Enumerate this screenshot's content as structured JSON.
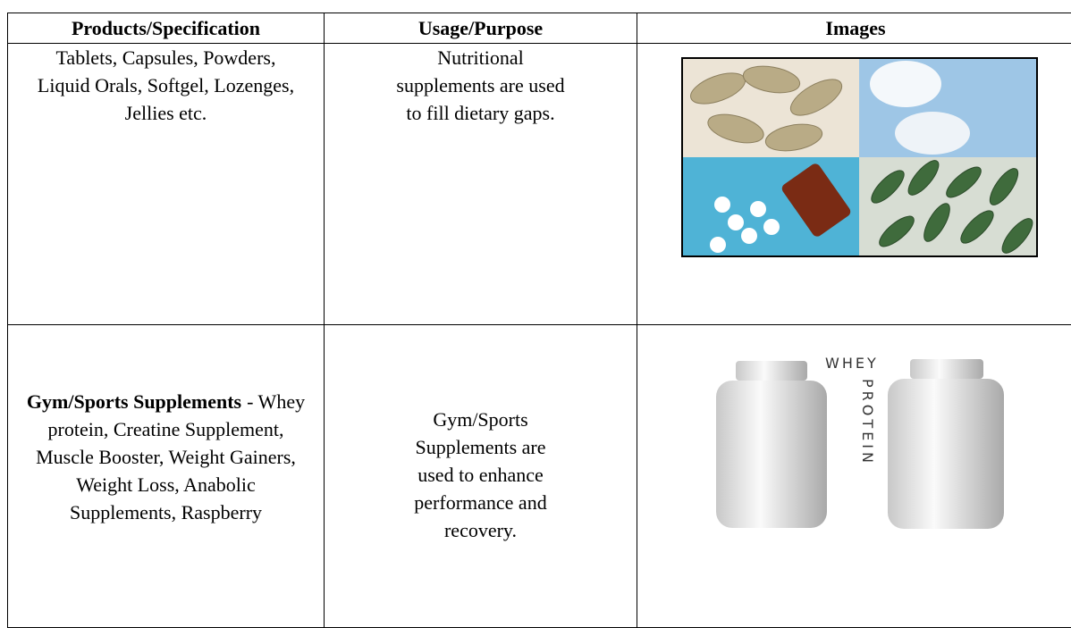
{
  "table": {
    "headers": [
      "Products/Specification",
      "Usage/Purpose",
      "Images"
    ],
    "rows": [
      {
        "product": {
          "text": "Tablets, Capsules, Powders, Liquid Orals, Softgel, Lozenges, Jellies etc."
        },
        "usage": "Nutritional supplements are used to fill dietary gaps."
      },
      {
        "product": {
          "bold": "Gym/Sports Supplements",
          "text": "- Whey protein, Creatine Supplement, Muscle Booster, Weight Gainers, Weight Loss, Anabolic Supplements, Raspberry"
        },
        "usage": "Gym/Sports Supplements are used to enhance performance and recovery.",
        "image_words": [
          "WHEY",
          "PROTEIN"
        ]
      }
    ]
  }
}
